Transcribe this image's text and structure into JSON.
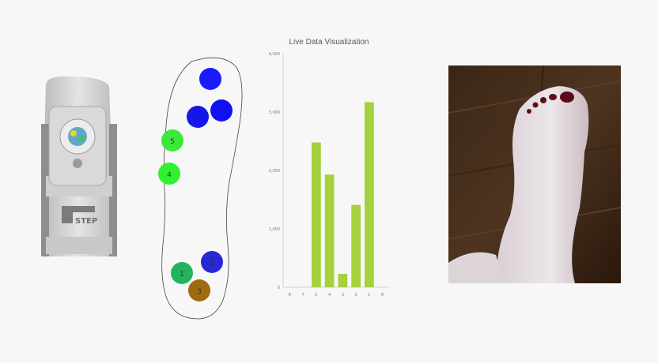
{
  "product": {
    "brand_text": "STEP"
  },
  "insole": {
    "sensors": [
      {
        "label": "",
        "color": "#1a1aff"
      },
      {
        "label": "",
        "color": "#1010f0"
      },
      {
        "label": "",
        "color": "#1616e8"
      },
      {
        "label": "5",
        "color": "#3ce83c"
      },
      {
        "label": "4",
        "color": "#2ef22e"
      },
      {
        "label": "1",
        "color": "#22b45c"
      },
      {
        "label": "2",
        "color": "#2828d8"
      },
      {
        "label": "3",
        "color": "#a06a10"
      }
    ]
  },
  "chart_data": {
    "type": "bar",
    "title": "Live Data Visualization",
    "categories": [
      "8",
      "7",
      "5",
      "4",
      "3",
      "2",
      "1",
      "6"
    ],
    "values": [
      0,
      0,
      2480,
      1930,
      230,
      1410,
      3170,
      0
    ],
    "ylim": [
      0,
      4000
    ],
    "yticks": [
      "0",
      "1,000",
      "2,000",
      "3,000",
      "4,000"
    ],
    "bar_color": "#a4d13c",
    "grid": false
  }
}
